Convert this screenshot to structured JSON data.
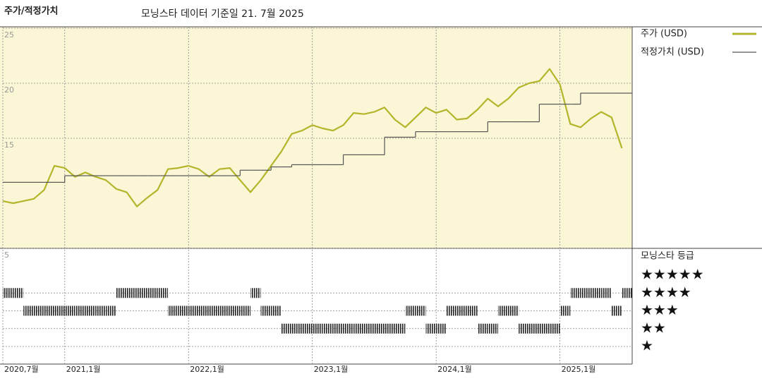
{
  "chart_data": [
    {
      "type": "line",
      "title": "주가/적정가치",
      "subtitle": "모닝스타 데이터 기준일 21. 7월 2025",
      "x": [
        "2020-07",
        "2020-08",
        "2020-09",
        "2020-10",
        "2020-11",
        "2020-12",
        "2021-01",
        "2021-02",
        "2021-03",
        "2021-04",
        "2021-05",
        "2021-06",
        "2021-07",
        "2021-08",
        "2021-09",
        "2021-10",
        "2021-11",
        "2021-12",
        "2022-01",
        "2022-02",
        "2022-03",
        "2022-04",
        "2022-05",
        "2022-06",
        "2022-07",
        "2022-08",
        "2022-09",
        "2022-10",
        "2022-11",
        "2022-12",
        "2023-01",
        "2023-02",
        "2023-03",
        "2023-04",
        "2023-05",
        "2023-06",
        "2023-07",
        "2023-08",
        "2023-09",
        "2023-10",
        "2023-11",
        "2023-12",
        "2024-01",
        "2024-02",
        "2024-03",
        "2024-04",
        "2024-05",
        "2024-06",
        "2024-07",
        "2024-08",
        "2024-09",
        "2024-10",
        "2024-11",
        "2024-12",
        "2025-01",
        "2025-02",
        "2025-03",
        "2025-04",
        "2025-05",
        "2025-06",
        "2025-07"
      ],
      "series": [
        {
          "name": "주가 (USD)",
          "color": "#b3b52a",
          "values": [
            9.3,
            9.1,
            9.3,
            9.5,
            10.3,
            12.5,
            12.3,
            11.5,
            11.9,
            11.5,
            11.2,
            10.4,
            10.1,
            8.8,
            9.6,
            10.3,
            12.2,
            12.3,
            12.5,
            12.2,
            11.5,
            12.2,
            12.3,
            11.2,
            10.1,
            11.2,
            12.5,
            13.8,
            15.4,
            15.7,
            16.2,
            15.9,
            15.7,
            16.2,
            17.3,
            17.2,
            17.4,
            17.8,
            16.7,
            16.0,
            16.9,
            17.8,
            17.3,
            17.6,
            16.7,
            16.8,
            17.6,
            18.6,
            17.9,
            18.6,
            19.6,
            20.0,
            20.2,
            21.3,
            19.9,
            16.3,
            16.0,
            16.8,
            17.4,
            16.9,
            14.1
          ]
        },
        {
          "name": "적정가치 (USD)",
          "color": "#555555",
          "step": true,
          "values": [
            11.0,
            11.0,
            11.0,
            11.0,
            11.0,
            11.0,
            11.6,
            11.6,
            11.6,
            11.6,
            11.6,
            11.6,
            11.6,
            11.6,
            11.6,
            11.6,
            11.6,
            11.6,
            11.6,
            11.6,
            11.6,
            11.6,
            11.6,
            12.1,
            12.1,
            12.1,
            12.4,
            12.4,
            12.6,
            12.6,
            12.6,
            12.6,
            12.6,
            13.5,
            13.5,
            13.5,
            13.5,
            15.1,
            15.1,
            15.1,
            15.6,
            15.6,
            15.6,
            15.6,
            15.6,
            15.6,
            15.6,
            16.5,
            16.5,
            16.5,
            16.5,
            16.5,
            18.1,
            18.1,
            18.1,
            18.1,
            19.1,
            19.1,
            19.1,
            19.1,
            19.1
          ]
        }
      ],
      "xlim": [
        "2020-07",
        "2025-08"
      ],
      "xticks": [
        {
          "value": "2020-07",
          "label": "2020,7월"
        },
        {
          "value": "2021-01",
          "label": "2021,1월"
        },
        {
          "value": "2022-01",
          "label": "2022,1월"
        },
        {
          "value": "2023-01",
          "label": "2023,1월"
        },
        {
          "value": "2024-01",
          "label": "2024,1월"
        },
        {
          "value": "2025-01",
          "label": "2025,1월"
        }
      ],
      "ylim": [
        5,
        25
      ],
      "yticks": [
        5,
        15,
        20,
        25
      ],
      "grid": true,
      "legend": "right"
    },
    {
      "type": "rating",
      "title": "모닝스타 등급",
      "levels": [
        "★",
        "★★",
        "★★★",
        "★★★★",
        "★★★★★"
      ],
      "color": "#222222",
      "x": [
        "2020-07",
        "2020-08",
        "2020-09",
        "2020-10",
        "2020-11",
        "2020-12",
        "2021-01",
        "2021-02",
        "2021-03",
        "2021-04",
        "2021-05",
        "2021-06",
        "2021-07",
        "2021-08",
        "2021-09",
        "2021-10",
        "2021-11",
        "2021-12",
        "2022-01",
        "2022-02",
        "2022-03",
        "2022-04",
        "2022-05",
        "2022-06",
        "2022-07",
        "2022-08",
        "2022-09",
        "2022-10",
        "2022-11",
        "2022-12",
        "2023-01",
        "2023-02",
        "2023-03",
        "2023-04",
        "2023-05",
        "2023-06",
        "2023-07",
        "2023-08",
        "2023-09",
        "2023-10",
        "2023-11",
        "2023-12",
        "2024-01",
        "2024-02",
        "2024-03",
        "2024-04",
        "2024-05",
        "2024-06",
        "2024-07",
        "2024-08",
        "2024-09",
        "2024-10",
        "2024-11",
        "2024-12",
        "2025-01",
        "2025-02",
        "2025-03",
        "2025-04",
        "2025-05",
        "2025-06",
        "2025-07"
      ],
      "values": [
        4,
        4,
        3,
        3,
        3,
        3,
        3,
        3,
        3,
        3,
        3,
        4,
        4,
        4,
        4,
        4,
        3,
        3,
        3,
        3,
        3,
        3,
        3,
        3,
        4,
        3,
        3,
        2,
        2,
        2,
        2,
        2,
        2,
        2,
        2,
        2,
        2,
        2,
        2,
        3,
        3,
        2,
        2,
        3,
        3,
        3,
        2,
        2,
        3,
        3,
        2,
        2,
        2,
        2,
        3,
        4,
        4,
        4,
        4,
        3,
        4
      ]
    }
  ]
}
